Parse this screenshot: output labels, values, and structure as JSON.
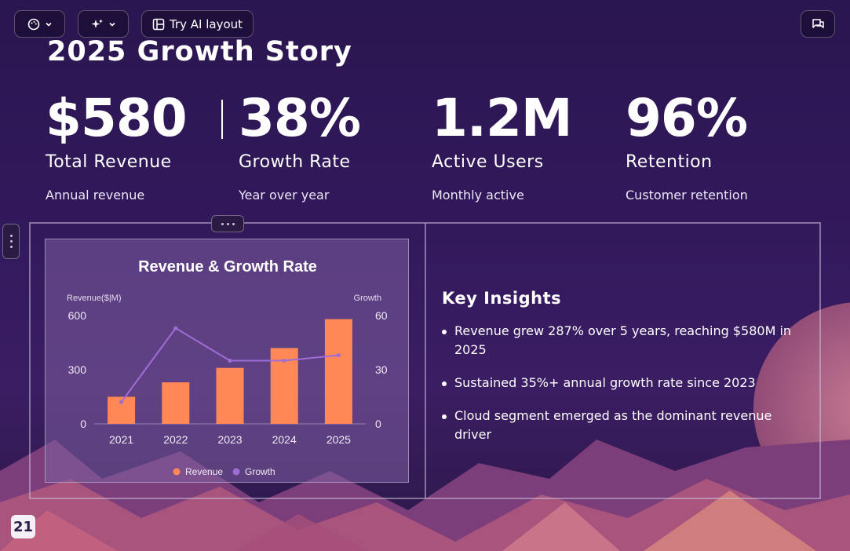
{
  "toolbar": {
    "theme_icon": "palette-icon",
    "ai_icon": "sparkles-icon",
    "ai_layout_label": "Try AI layout",
    "comments_icon": "comments-icon"
  },
  "slide": {
    "title": "2025 Growth Story",
    "stats": [
      {
        "value": "$580",
        "label": "Total Revenue",
        "sub": "Annual revenue"
      },
      {
        "value": "38%",
        "label": "Growth Rate",
        "sub": "Year over year"
      },
      {
        "value": "1.2M",
        "label": "Active Users",
        "sub": "Monthly active"
      },
      {
        "value": "96%",
        "label": "Retention",
        "sub": "Customer retention"
      }
    ],
    "insights": {
      "heading": "Key Insights",
      "items": [
        "Revenue grew 287% over 5 years, reaching $580M in 2025",
        "Sustained 35%+ annual growth rate since 2023",
        "Cloud segment emerged as the dominant revenue driver"
      ]
    },
    "page_number": "21"
  },
  "chart_data": {
    "type": "bar",
    "title": "Revenue & Growth Rate",
    "categories": [
      "2021",
      "2022",
      "2023",
      "2024",
      "2025"
    ],
    "series": [
      {
        "name": "Revenue",
        "type": "bar",
        "axis": "left",
        "color": "#ff8856",
        "values": [
          150,
          230,
          310,
          420,
          580
        ]
      },
      {
        "name": "Growth",
        "type": "line",
        "axis": "right",
        "color": "#a06cd5",
        "values": [
          12,
          53,
          35,
          35,
          38
        ]
      }
    ],
    "ylabel_left": "Revenue($|M)",
    "ylabel_right": "Growth",
    "ylim_left": [
      0,
      600
    ],
    "ylim_right": [
      0,
      60
    ],
    "yticks_left": [
      "0",
      "300",
      "600"
    ],
    "yticks_right": [
      "0",
      "30",
      "60"
    ],
    "legend": "bottom",
    "grid": false
  }
}
